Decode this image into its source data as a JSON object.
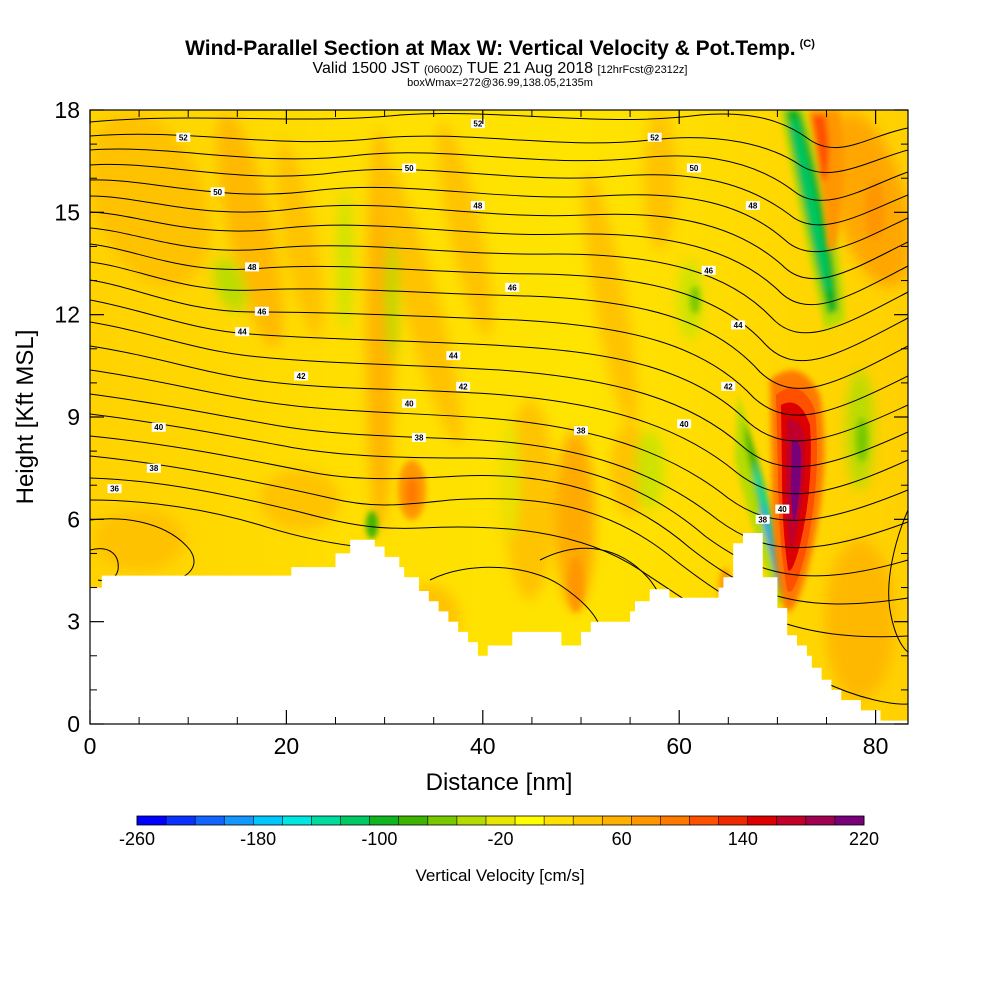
{
  "title": {
    "main": "Wind-Parallel Section at Max W: Vertical Velocity & Pot.Temp.",
    "copyright": "(C)",
    "valid_prefix": "Valid 1500 JST",
    "valid_utc": "(0600Z)",
    "valid_date": "TUE 21 Aug 2018",
    "forecast": "[12hrFcst@2312z]",
    "box_info": "boxWmax=272@36.99,138.05,2135m"
  },
  "chart_data": {
    "type": "heatmap",
    "xlabel": "Distance [nm]",
    "ylabel": "Height [Kft MSL]",
    "xlim": [
      0,
      83.3
    ],
    "ylim": [
      0,
      18
    ],
    "x_ticks": [
      "0",
      "20",
      "40",
      "60",
      "80"
    ],
    "y_ticks": [
      "0",
      "3",
      "6",
      "9",
      "12",
      "15",
      "18"
    ],
    "colorbar": {
      "label": "Vertical Velocity [cm/s]",
      "tick_labels": [
        "-260",
        "-180",
        "-100",
        "-20",
        "60",
        "140",
        "220"
      ],
      "levels": [
        -260,
        -240,
        -220,
        -200,
        -180,
        -160,
        -140,
        -120,
        -100,
        -80,
        -60,
        -40,
        -20,
        0,
        20,
        40,
        60,
        80,
        100,
        120,
        140,
        160,
        180,
        200,
        220
      ],
      "colors": [
        "#0000ff",
        "#0a32ff",
        "#1264ff",
        "#1496ff",
        "#00c8ff",
        "#00e6e0",
        "#00dca0",
        "#00c864",
        "#10b420",
        "#3cb400",
        "#78c800",
        "#b4dc00",
        "#e6e600",
        "#ffff00",
        "#ffe000",
        "#ffc800",
        "#ffb000",
        "#ff9600",
        "#ff7800",
        "#ff5000",
        "#f02800",
        "#dc0000",
        "#c0002a",
        "#a00050",
        "#780078"
      ]
    },
    "theta_contour_labels": [
      {
        "value": "52",
        "x": 9.5,
        "y": 17.2
      },
      {
        "value": "52",
        "x": 39.5,
        "y": 17.6
      },
      {
        "value": "52",
        "x": 57.5,
        "y": 17.2
      },
      {
        "value": "50",
        "x": 13,
        "y": 15.6
      },
      {
        "value": "50",
        "x": 32.5,
        "y": 16.3
      },
      {
        "value": "50",
        "x": 61.5,
        "y": 16.3
      },
      {
        "value": "48",
        "x": 16.5,
        "y": 13.4
      },
      {
        "value": "48",
        "x": 39.5,
        "y": 15.2
      },
      {
        "value": "48",
        "x": 67.5,
        "y": 15.2
      },
      {
        "value": "46",
        "x": 17.5,
        "y": 12.1
      },
      {
        "value": "46",
        "x": 43,
        "y": 12.8
      },
      {
        "value": "46",
        "x": 63,
        "y": 13.3
      },
      {
        "value": "44",
        "x": 15.5,
        "y": 11.5
      },
      {
        "value": "44",
        "x": 37,
        "y": 10.8
      },
      {
        "value": "44",
        "x": 66,
        "y": 11.7
      },
      {
        "value": "42",
        "x": 21.5,
        "y": 10.2
      },
      {
        "value": "42",
        "x": 38,
        "y": 9.9
      },
      {
        "value": "42",
        "x": 65,
        "y": 9.9
      },
      {
        "value": "40",
        "x": 7,
        "y": 8.7
      },
      {
        "value": "40",
        "x": 32.5,
        "y": 9.4
      },
      {
        "value": "40",
        "x": 60.5,
        "y": 8.8
      },
      {
        "value": "40",
        "x": 70.5,
        "y": 6.3
      },
      {
        "value": "38",
        "x": 6.5,
        "y": 7.5
      },
      {
        "value": "38",
        "x": 33.5,
        "y": 8.4
      },
      {
        "value": "38",
        "x": 50,
        "y": 8.6
      },
      {
        "value": "38",
        "x": 68.5,
        "y": 6.0
      },
      {
        "value": "36",
        "x": 2.5,
        "y": 6.9
      }
    ],
    "grid": false,
    "legend": "bottom"
  }
}
